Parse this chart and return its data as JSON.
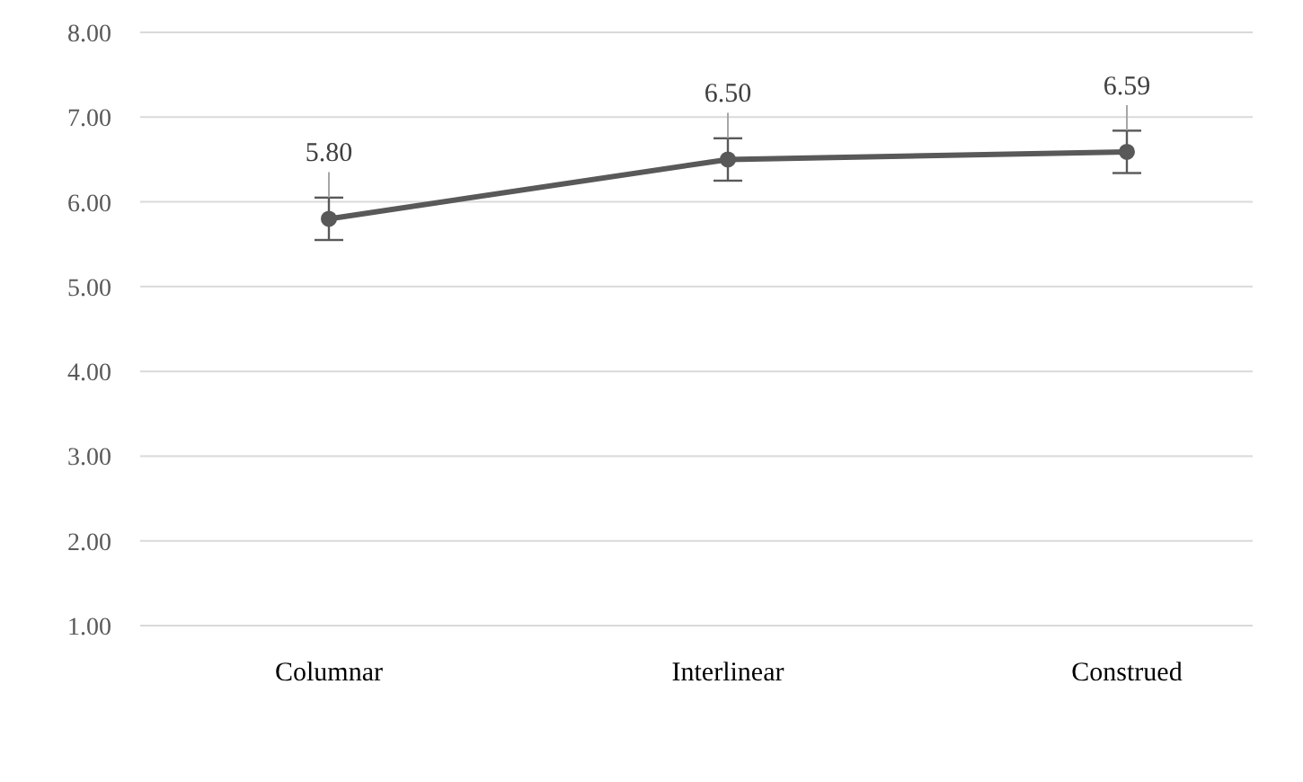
{
  "chart_data": {
    "type": "line",
    "categories": [
      "Columnar",
      "Interlinear",
      "Construed"
    ],
    "series": [
      {
        "color": "#595959",
        "values": [
          5.8,
          6.5,
          6.59
        ],
        "value_labels": [
          "5.80",
          "6.50",
          "6.59"
        ],
        "errors": [
          0.25,
          0.25,
          0.25
        ]
      }
    ],
    "ylim": [
      1,
      8
    ],
    "yticks": [
      {
        "value": 1,
        "label": "1.00"
      },
      {
        "value": 2,
        "label": "2.00"
      },
      {
        "value": 3,
        "label": "3.00"
      },
      {
        "value": 4,
        "label": "4.00"
      },
      {
        "value": 5,
        "label": "5.00"
      },
      {
        "value": 6,
        "label": "6.00"
      },
      {
        "value": 7,
        "label": "7.00"
      },
      {
        "value": 8,
        "label": "8.00"
      }
    ],
    "grid": "y",
    "marker": "circle"
  }
}
